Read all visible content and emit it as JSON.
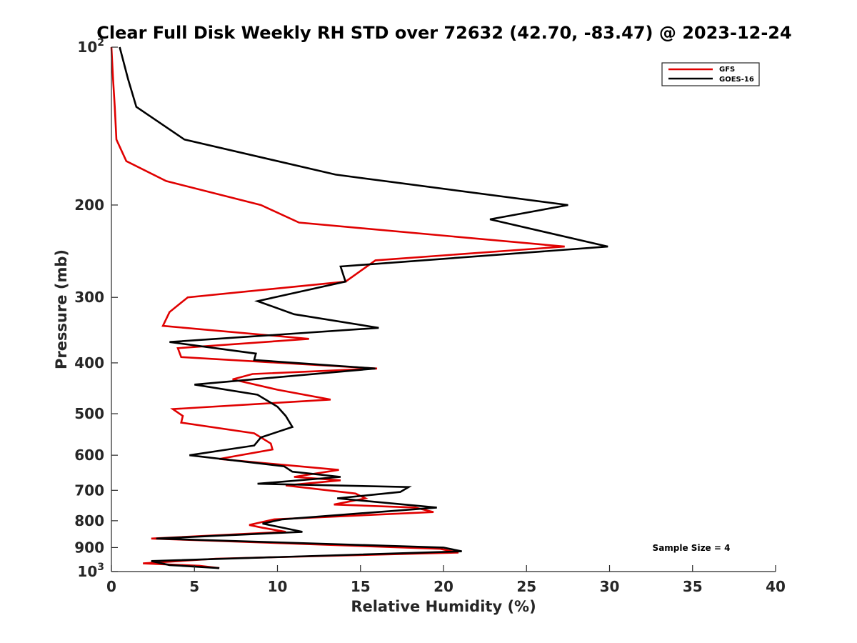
{
  "chart_data": {
    "type": "line",
    "title": "Clear Full Disk Weekly RH STD over 72632 (42.70, -83.47) @ 2023-12-24",
    "xlabel": "Relative Humidity (%)",
    "ylabel": "Pressure (mb)",
    "xlim": [
      0,
      40
    ],
    "ylim": [
      100,
      1000
    ],
    "y_scale": "log",
    "y_reversed": true,
    "x_ticks": [
      "0",
      "5",
      "10",
      "15",
      "20",
      "25",
      "30",
      "35",
      "40"
    ],
    "y_ticks": [
      {
        "value": 100,
        "base": "10",
        "exp": "2"
      },
      {
        "value": 200,
        "label": "200"
      },
      {
        "value": 300,
        "label": "300"
      },
      {
        "value": 400,
        "label": "400"
      },
      {
        "value": 500,
        "label": "500"
      },
      {
        "value": 600,
        "label": "600"
      },
      {
        "value": 700,
        "label": "700"
      },
      {
        "value": 800,
        "label": "800"
      },
      {
        "value": 900,
        "label": "900"
      },
      {
        "value": 1000,
        "base": "10",
        "exp": "3"
      }
    ],
    "grid": false,
    "legend_position": "top-right",
    "annotation": "Sample Size = 4",
    "series": [
      {
        "name": "GFS",
        "color": "#e00000",
        "points": [
          [
            0.0,
            100
          ],
          [
            0.1,
            115
          ],
          [
            0.2,
            130
          ],
          [
            0.3,
            150
          ],
          [
            0.9,
            165
          ],
          [
            3.3,
            180
          ],
          [
            9.0,
            200
          ],
          [
            11.3,
            216
          ],
          [
            27.3,
            240
          ],
          [
            15.9,
            255
          ],
          [
            14.1,
            280
          ],
          [
            4.6,
            300
          ],
          [
            3.5,
            320
          ],
          [
            3.1,
            340
          ],
          [
            11.9,
            360
          ],
          [
            4.0,
            375
          ],
          [
            4.2,
            390
          ],
          [
            16.0,
            410
          ],
          [
            8.5,
            420
          ],
          [
            7.3,
            430
          ],
          [
            10.0,
            450
          ],
          [
            13.2,
            470
          ],
          [
            3.7,
            490
          ],
          [
            4.3,
            505
          ],
          [
            4.2,
            520
          ],
          [
            8.6,
            545
          ],
          [
            9.6,
            570
          ],
          [
            9.7,
            585
          ],
          [
            6.5,
            610
          ],
          [
            13.7,
            640
          ],
          [
            11.0,
            660
          ],
          [
            13.8,
            670
          ],
          [
            10.5,
            685
          ],
          [
            14.7,
            710
          ],
          [
            15.3,
            725
          ],
          [
            13.4,
            745
          ],
          [
            18.3,
            755
          ],
          [
            19.4,
            770
          ],
          [
            9.8,
            795
          ],
          [
            8.3,
            815
          ],
          [
            9.1,
            825
          ],
          [
            10.5,
            840
          ],
          [
            2.4,
            865
          ],
          [
            19.8,
            905
          ],
          [
            20.9,
            920
          ],
          [
            6.3,
            945
          ],
          [
            1.9,
            965
          ],
          [
            5.3,
            975
          ],
          [
            6.5,
            985
          ]
        ]
      },
      {
        "name": "GOES-16",
        "color": "#000000",
        "points": [
          [
            0.5,
            100
          ],
          [
            1.0,
            115
          ],
          [
            1.5,
            130
          ],
          [
            4.4,
            150
          ],
          [
            13.5,
            175
          ],
          [
            27.5,
            200
          ],
          [
            22.8,
            213
          ],
          [
            29.9,
            240
          ],
          [
            13.8,
            262
          ],
          [
            14.1,
            280
          ],
          [
            8.8,
            305
          ],
          [
            11.0,
            323
          ],
          [
            16.1,
            343
          ],
          [
            3.5,
            365
          ],
          [
            8.7,
            384
          ],
          [
            8.6,
            395
          ],
          [
            15.9,
            410
          ],
          [
            5.0,
            440
          ],
          [
            8.8,
            460
          ],
          [
            10.0,
            485
          ],
          [
            10.5,
            505
          ],
          [
            10.9,
            530
          ],
          [
            9.0,
            555
          ],
          [
            8.6,
            575
          ],
          [
            4.7,
            600
          ],
          [
            10.4,
            630
          ],
          [
            10.9,
            645
          ],
          [
            13.8,
            660
          ],
          [
            8.8,
            680
          ],
          [
            17.9,
            690
          ],
          [
            17.4,
            705
          ],
          [
            13.6,
            725
          ],
          [
            19.6,
            755
          ],
          [
            10.3,
            795
          ],
          [
            9.1,
            810
          ],
          [
            11.5,
            840
          ],
          [
            2.7,
            865
          ],
          [
            20.0,
            900
          ],
          [
            21.1,
            915
          ],
          [
            2.4,
            955
          ],
          [
            3.5,
            972
          ],
          [
            6.5,
            985
          ]
        ]
      }
    ]
  }
}
